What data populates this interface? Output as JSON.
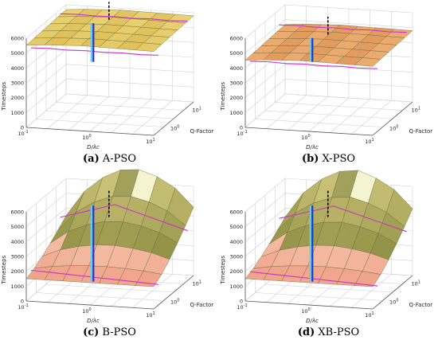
{
  "figure": {
    "captions": [
      {
        "letter": "(a)",
        "name": "A-PSO"
      },
      {
        "letter": "(b)",
        "name": "X-PSO"
      },
      {
        "letter": "(c)",
        "name": "B-PSO"
      },
      {
        "letter": "(d)",
        "name": "XB-PSO"
      }
    ]
  },
  "colors": {
    "flat_surface_light": "#f2dc7a",
    "flat_surface_dark": "#d9b84a",
    "orange_surface_light": "#f0b070",
    "orange_surface_dark": "#d98a4a",
    "peak_surface_dark": "#8a8a3a",
    "peak_surface_light": "#ffffe0",
    "base_surface": "#e87a5a",
    "magenta_line": "#cc33cc",
    "blue_bar": "#1a3acc",
    "cyan_bar": "#66ccee",
    "dashed_line": "#000000",
    "grid": "#d0d0d0"
  },
  "chart_data": [
    {
      "type": "surface3d",
      "panel": "A-PSO",
      "zlabel": "Timesteps",
      "xlabel": "D/λ_c",
      "ylabel": "Q-Factor",
      "zticks": [
        "0",
        "1000",
        "2000",
        "3000",
        "4000",
        "5000",
        "6000"
      ],
      "xticks": [
        "10^-1",
        "10^0",
        "10^1"
      ],
      "yticks": [
        "10^0",
        "10^1"
      ],
      "zlim": [
        0,
        6000
      ],
      "surface_levels": [
        5600,
        5700,
        5750,
        5800,
        5780,
        5760,
        5740,
        5720
      ],
      "magenta_levels": [
        5750,
        5100
      ],
      "colormap": "flat"
    },
    {
      "type": "surface3d",
      "panel": "X-PSO",
      "zlabel": "Timesteps",
      "xlabel": "D/λ_c",
      "ylabel": "Q-Factor",
      "zticks": [
        "0",
        "1000",
        "2000",
        "3000",
        "4000",
        "5000",
        "6000"
      ],
      "xticks": [
        "10^-1",
        "10^0",
        "10^1"
      ],
      "yticks": [
        "10^0",
        "10^1"
      ],
      "zlim": [
        0,
        6000
      ],
      "surface_levels": [
        4600,
        4700,
        4750,
        4800,
        4780,
        4760,
        4740,
        4720
      ],
      "magenta_levels": [
        5000,
        4200
      ],
      "colormap": "orange"
    },
    {
      "type": "surface3d",
      "panel": "B-PSO",
      "zlabel": "Timesteps",
      "xlabel": "D/λ_c",
      "ylabel": "Q-Factor",
      "zticks": [
        "0",
        "1000",
        "2000",
        "3000",
        "4000",
        "5000",
        "6000"
      ],
      "xticks": [
        "10^-1",
        "10^0",
        "10^1"
      ],
      "yticks": [
        "10^0",
        "10^1"
      ],
      "zlim": [
        0,
        6000
      ],
      "surface_levels": [
        3500,
        5200,
        6200,
        6800,
        6900,
        6500,
        5800,
        4600
      ],
      "magenta_levels": [
        4800,
        1800
      ],
      "colormap": "peak"
    },
    {
      "type": "surface3d",
      "panel": "XB-PSO",
      "zlabel": "Timesteps",
      "xlabel": "D/λ_c",
      "ylabel": "Q-Factor",
      "zticks": [
        "0",
        "1000",
        "2000",
        "3000",
        "4000",
        "5000",
        "6000"
      ],
      "xticks": [
        "10^-1",
        "10^0",
        "10^1"
      ],
      "yticks": [
        "10^0",
        "10^1"
      ],
      "zlim": [
        0,
        6000
      ],
      "surface_levels": [
        3400,
        5100,
        6100,
        6700,
        6850,
        6400,
        5700,
        4500
      ],
      "magenta_levels": [
        4700,
        1700
      ],
      "colormap": "peak"
    }
  ]
}
